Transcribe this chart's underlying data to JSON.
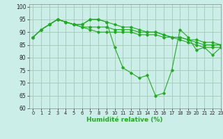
{
  "xlabel": "Humidité relative (%)",
  "bg_color": "#cceee8",
  "grid_color": "#aaccbb",
  "line_color": "#22aa22",
  "xlim": [
    -0.5,
    23
  ],
  "ylim": [
    60,
    101
  ],
  "yticks": [
    60,
    65,
    70,
    75,
    80,
    85,
    90,
    95,
    100
  ],
  "xticks": [
    0,
    1,
    2,
    3,
    4,
    5,
    6,
    7,
    8,
    9,
    10,
    11,
    12,
    13,
    14,
    15,
    16,
    17,
    18,
    19,
    20,
    21,
    22,
    23
  ],
  "series": [
    [
      88,
      91,
      93,
      95,
      94,
      93,
      93,
      95,
      95,
      94,
      84,
      76,
      74,
      72,
      73,
      65,
      66,
      75,
      91,
      88,
      83,
      84,
      81,
      84
    ],
    [
      88,
      91,
      93,
      95,
      94,
      93,
      92,
      91,
      90,
      90,
      90,
      90,
      90,
      89,
      89,
      89,
      88,
      88,
      88,
      87,
      86,
      85,
      85,
      85
    ],
    [
      88,
      91,
      93,
      95,
      94,
      93,
      92,
      92,
      92,
      92,
      91,
      91,
      91,
      90,
      90,
      90,
      89,
      88,
      87,
      86,
      85,
      84,
      84,
      84
    ],
    [
      88,
      91,
      93,
      95,
      94,
      93,
      93,
      95,
      95,
      94,
      93,
      92,
      92,
      91,
      90,
      90,
      89,
      88,
      88,
      87,
      87,
      86,
      86,
      85
    ]
  ]
}
